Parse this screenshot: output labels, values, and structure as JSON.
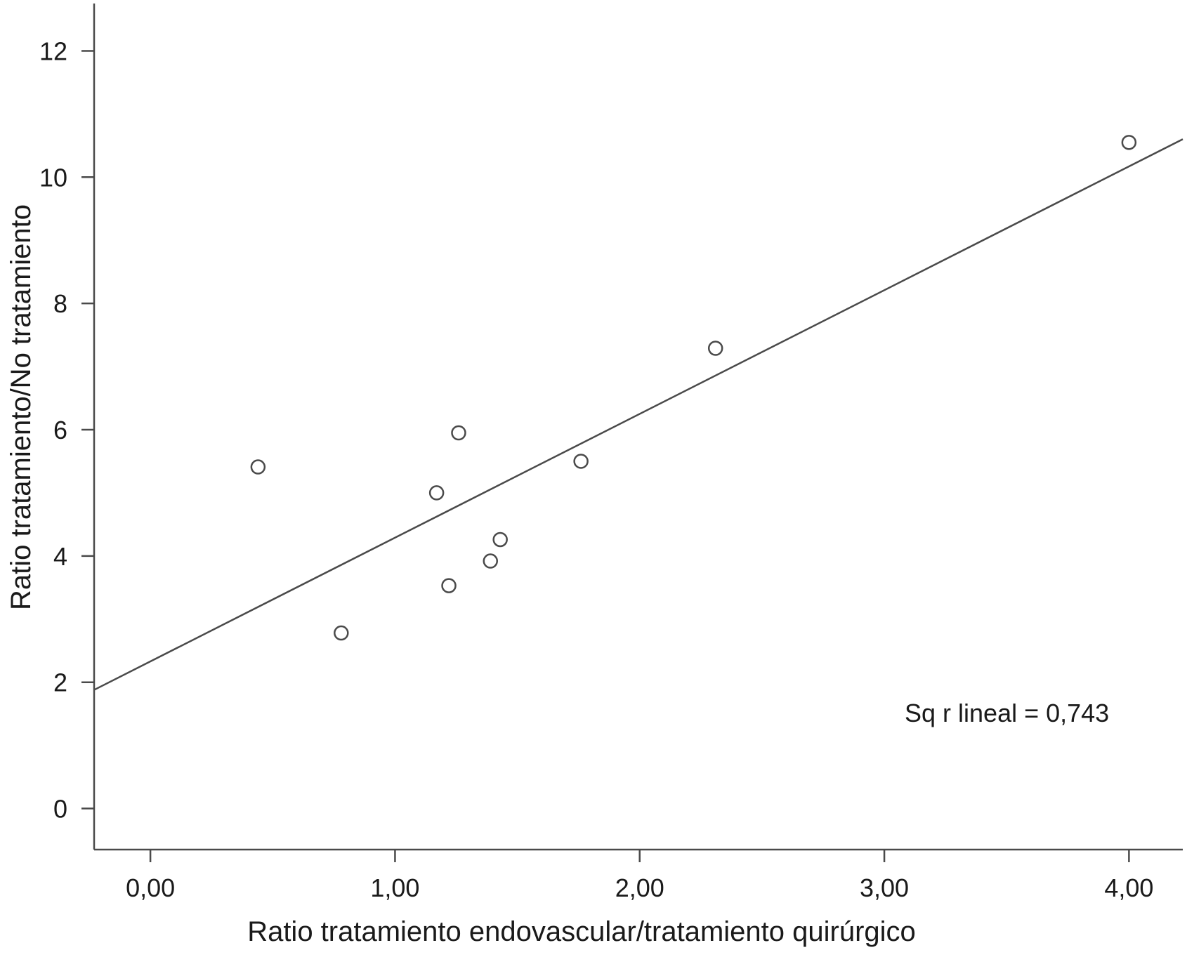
{
  "chart_data": {
    "type": "scatter",
    "title": "",
    "xlabel": "Ratio tratamiento endovascular/tratamiento quirúrgico",
    "ylabel": "Ratio tratamiento/No tratamiento",
    "xlim": [
      -0.23,
      4.22
    ],
    "ylim": [
      -0.65,
      12.75
    ],
    "x_ticks": [
      0,
      1,
      2,
      3,
      4
    ],
    "x_tick_labels": [
      "0,00",
      "1,00",
      "2,00",
      "3,00",
      "4,00"
    ],
    "y_ticks": [
      0,
      2,
      4,
      6,
      8,
      10,
      12
    ],
    "y_tick_labels": [
      "0",
      "2",
      "4",
      "6",
      "8",
      "10",
      "12"
    ],
    "grid": false,
    "series": [
      {
        "marker": "open-circle",
        "points": [
          {
            "x": 0.44,
            "y": 5.41
          },
          {
            "x": 0.78,
            "y": 2.78
          },
          {
            "x": 1.17,
            "y": 5.0
          },
          {
            "x": 1.22,
            "y": 3.53
          },
          {
            "x": 1.26,
            "y": 5.95
          },
          {
            "x": 1.39,
            "y": 3.92
          },
          {
            "x": 1.43,
            "y": 4.26
          },
          {
            "x": 1.76,
            "y": 5.5
          },
          {
            "x": 2.31,
            "y": 7.29
          },
          {
            "x": 4.0,
            "y": 10.55
          }
        ]
      }
    ],
    "fit_line": {
      "intercept": 2.33,
      "slope": 1.96
    },
    "annotation": "Sq r lineal = 0,743",
    "colors": {
      "marks": "#4a4a4a",
      "axis": "#4a4a4a",
      "text": "#1a1a1a"
    }
  }
}
